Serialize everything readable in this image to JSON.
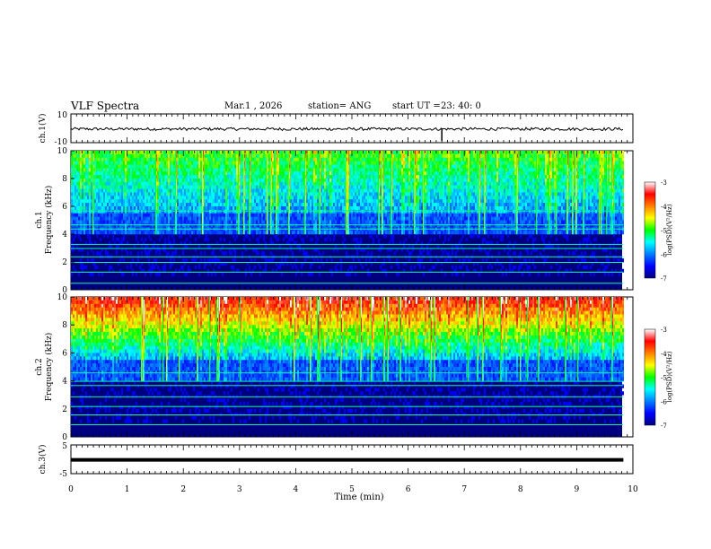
{
  "header": {
    "title": "VLF Spectra",
    "date": "Mar.1 , 2026",
    "station": "station= ANG",
    "start": "start UT =",
    "start_time": "23: 40: 0"
  },
  "chart_data": [
    {
      "id": "ch1-waveform",
      "type": "line",
      "ylabel": "ch.1(V)",
      "ylim": [
        -10,
        10
      ],
      "yticks": [
        "10",
        "-10"
      ],
      "baseline_V": -0.5,
      "noise_amplitude_V": 2,
      "spike_at_min": 6.6,
      "color": "#000000"
    },
    {
      "id": "ch1-spectrogram",
      "type": "heatmap",
      "ylabel": "ch.1",
      "ylabel2": "Frequency (kHz)",
      "ylim": [
        0,
        10
      ],
      "yticks": [
        "0",
        "2",
        "4",
        "6",
        "8",
        "10"
      ],
      "colorbar": {
        "label": "log(PSD)(V²/Hz)",
        "range": [
          -7,
          -3
        ],
        "ticks": [
          "-3",
          "-4",
          "-5",
          "-6",
          "-7"
        ]
      }
    },
    {
      "id": "ch2-spectrogram",
      "type": "heatmap",
      "ylabel": "ch.2",
      "ylabel2": "Frequency (kHz)",
      "ylim": [
        0,
        10
      ],
      "yticks": [
        "0",
        "2",
        "4",
        "6",
        "8",
        "10"
      ],
      "colorbar": {
        "label": "log(PSD)(V²/Hz)",
        "range": [
          -7,
          -3
        ],
        "ticks": [
          "-3",
          "-4",
          "-5",
          "-6",
          "-7"
        ]
      }
    },
    {
      "id": "ch3-waveform",
      "type": "line",
      "ylabel": "ch.3(V)",
      "ylim": [
        -5,
        5
      ],
      "yticks": [
        "5",
        "-5"
      ],
      "baseline_V": -0.2,
      "color": "#000000"
    }
  ],
  "xaxis": {
    "label": "Time (min)",
    "range": [
      0,
      10
    ],
    "data_end_min": 9.83,
    "ticks": [
      "0",
      "1",
      "2",
      "3",
      "4",
      "5",
      "6",
      "7",
      "8",
      "9",
      "10"
    ]
  }
}
